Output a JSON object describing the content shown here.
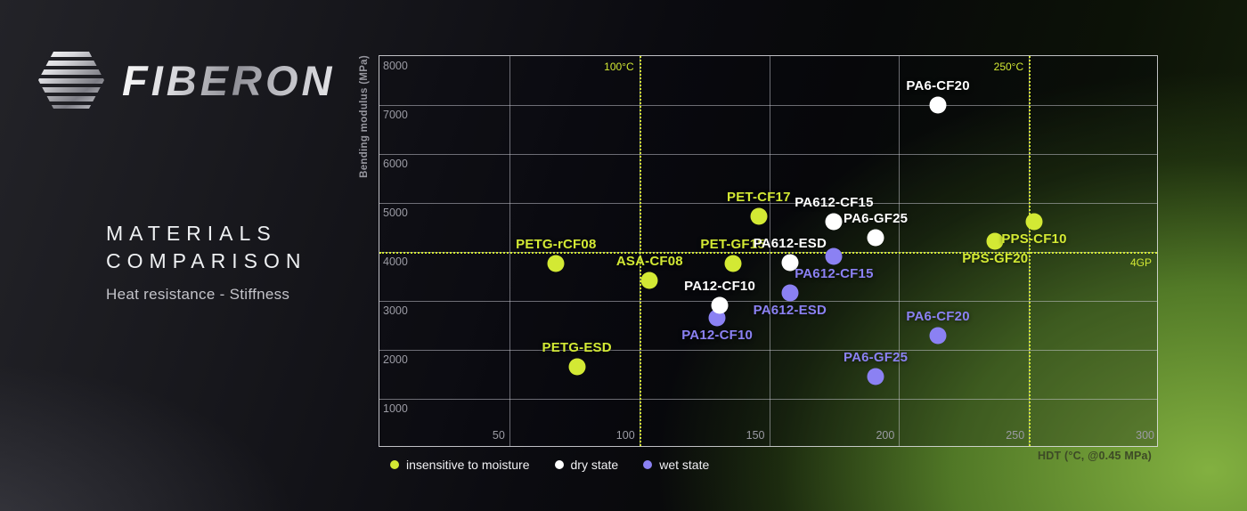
{
  "brand": {
    "name": "FIBERON"
  },
  "panel": {
    "title_line1": "MATERIALS",
    "title_line2": "COMPARISON",
    "subtitle": "Heat resistance - Stiffness"
  },
  "chart_data": {
    "type": "scatter",
    "xlabel": "HDT (°C, @0.45 MPa)",
    "ylabel": "Bending modulus (MPa)",
    "xlim": [
      0,
      300
    ],
    "ylim": [
      0,
      8000
    ],
    "x_ticks": [
      50,
      100,
      150,
      200,
      250,
      300
    ],
    "y_ticks": [
      1000,
      2000,
      3000,
      4000,
      5000,
      6000,
      7000,
      8000
    ],
    "grid": true,
    "accent_color": "#d3e934",
    "reference_lines": {
      "vertical": [
        {
          "x": 100,
          "label": "100°C"
        },
        {
          "x": 250,
          "label": "250°C"
        }
      ],
      "horizontal": [
        {
          "y": 4000,
          "label": "4GP"
        }
      ]
    },
    "series": [
      {
        "name": "insensitive to moisture",
        "color": "#d3e934",
        "z": 5,
        "points": [
          {
            "label": "PETG-rCF08",
            "x": 68,
            "y": 3760,
            "label_pos": "top"
          },
          {
            "label": "PETG-ESD",
            "x": 76,
            "y": 1650,
            "label_pos": "top"
          },
          {
            "label": "ASA-CF08",
            "x": 104,
            "y": 3420,
            "label_pos": "top"
          },
          {
            "label": "PET-GF15",
            "x": 136,
            "y": 3760,
            "label_pos": "top"
          },
          {
            "label": "PET-CF17",
            "x": 146,
            "y": 4720,
            "label_pos": "top"
          },
          {
            "label": "PPS-GF20",
            "x": 237,
            "y": 4220,
            "label_pos": "bottom"
          },
          {
            "label": "PPS-CF10",
            "x": 252,
            "y": 4620,
            "label_pos": "bottom"
          }
        ]
      },
      {
        "name": "wet state",
        "color": "#8b81f3",
        "z": 5,
        "points": [
          {
            "label": "PA12-CF10",
            "x": 130,
            "y": 2650,
            "label_pos": "bottom"
          },
          {
            "label": "PA612-ESD",
            "x": 158,
            "y": 3160,
            "label_pos": "bottom"
          },
          {
            "label": "PA612-CF15",
            "x": 175,
            "y": 3910,
            "label_pos": "bottom"
          },
          {
            "label": "PA6-GF25",
            "x": 191,
            "y": 1450,
            "label_pos": "top"
          },
          {
            "label": "PA6-CF20",
            "x": 215,
            "y": 2300,
            "label_pos": "top"
          }
        ]
      },
      {
        "name": "dry state",
        "color": "#ffffff",
        "z": 6,
        "points": [
          {
            "label": "PA12-CF10",
            "x": 131,
            "y": 2910,
            "label_pos": "top"
          },
          {
            "label": "PA612-ESD",
            "x": 158,
            "y": 3780,
            "label_pos": "top"
          },
          {
            "label": "PA612-CF15",
            "x": 175,
            "y": 4620,
            "label_pos": "top"
          },
          {
            "label": "PA6-GF25",
            "x": 191,
            "y": 4290,
            "label_pos": "top"
          },
          {
            "label": "PA6-CF20",
            "x": 215,
            "y": 7000,
            "label_pos": "top"
          }
        ]
      }
    ],
    "legend": [
      {
        "label": "insensitive to moisture",
        "color": "#d3e934"
      },
      {
        "label": "dry state",
        "color": "#ffffff"
      },
      {
        "label": "wet state",
        "color": "#8b81f3"
      }
    ],
    "legend_position": "bottom-left"
  }
}
